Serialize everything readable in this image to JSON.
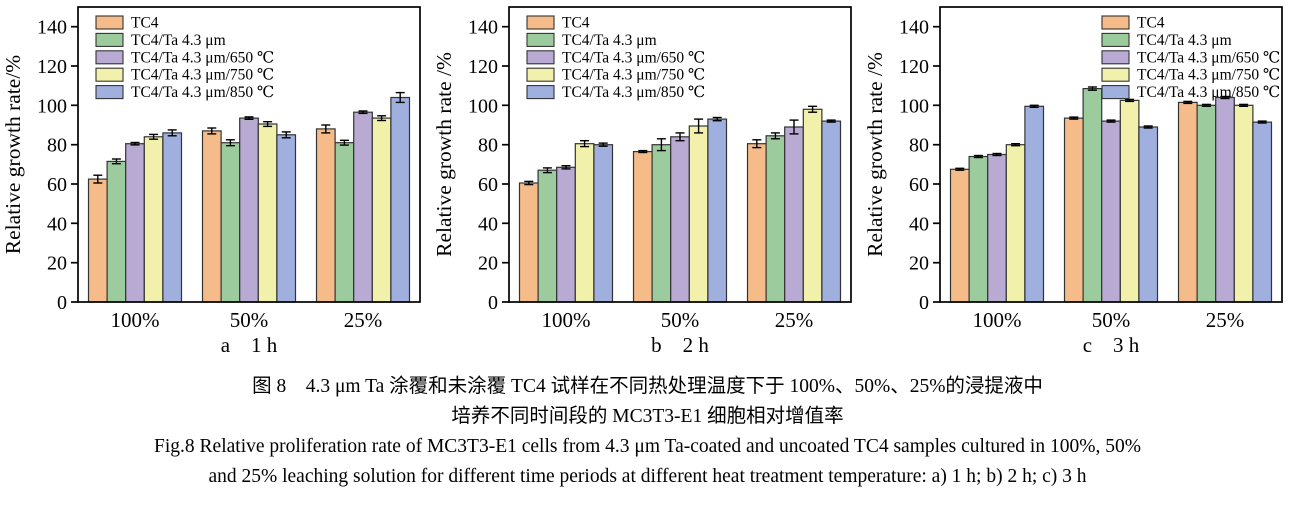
{
  "figure": {
    "caption_zh_line1": "图 8　4.3 μm Ta 涂覆和未涂覆 TC4 试样在不同热处理温度下于 100%、50%、25%的浸提液中",
    "caption_zh_line2": "培养不同时间段的 MC3T3-E1 细胞相对增值率",
    "caption_en_line1": "Fig.8 Relative proliferation rate of MC3T3-E1 cells from 4.3 μm Ta-coated and uncoated TC4 samples cultured in 100%, 50%",
    "caption_en_line2": "and 25% leaching solution for different time periods at different heat treatment temperature: a) 1 h; b) 2 h; c) 3 h"
  },
  "colors": {
    "bar_orange": "#F5BB88",
    "bar_green": "#9CCB9E",
    "bar_purple": "#B9AAD4",
    "bar_yellow": "#F1F1AC",
    "bar_blue": "#9FB0DF",
    "axis": "#000000"
  },
  "chart_data": [
    {
      "type": "bar",
      "panel": "a",
      "subtitle": "a　1 h",
      "ylabel": "Relative growth rate/%",
      "xlabel": "",
      "ylim": [
        0,
        150
      ],
      "yticks": [
        0,
        20,
        40,
        60,
        80,
        100,
        120,
        140
      ],
      "categories": [
        "100%",
        "50%",
        "25%"
      ],
      "legend_position": "top-left",
      "series": [
        {
          "name": "TC4",
          "color": "#F5BB88",
          "values": [
            62.5,
            87,
            88
          ],
          "errors": [
            2,
            1.5,
            2
          ]
        },
        {
          "name": "TC4/Ta 4.3 μm",
          "color": "#9CCB9E",
          "values": [
            71.5,
            81,
            81
          ],
          "errors": [
            1.2,
            1.5,
            1.2
          ]
        },
        {
          "name": "TC4/Ta 4.3 μm/650 ℃",
          "color": "#B9AAD4",
          "values": [
            80.5,
            93.5,
            96.5
          ],
          "errors": [
            0.6,
            0.6,
            0.6
          ]
        },
        {
          "name": "TC4/Ta 4.3 μm/750 ℃",
          "color": "#F1F1AC",
          "values": [
            84,
            90.5,
            93.5
          ],
          "errors": [
            1.2,
            1.2,
            1.2
          ]
        },
        {
          "name": "TC4/Ta 4.3 μm/850 ℃",
          "color": "#9FB0DF",
          "values": [
            86,
            85,
            104
          ],
          "errors": [
            1.5,
            1.5,
            2.5
          ]
        }
      ]
    },
    {
      "type": "bar",
      "panel": "b",
      "subtitle": "b　2 h",
      "ylabel": "Relative growth rate /%",
      "xlabel": "",
      "ylim": [
        0,
        150
      ],
      "yticks": [
        0,
        20,
        40,
        60,
        80,
        100,
        120,
        140
      ],
      "categories": [
        "100%",
        "50%",
        "25%"
      ],
      "legend_position": "top-left",
      "series": [
        {
          "name": "TC4",
          "color": "#F5BB88",
          "values": [
            60.5,
            76.5,
            80.5
          ],
          "errors": [
            0.8,
            0.5,
            2
          ]
        },
        {
          "name": "TC4/Ta 4.3 μm",
          "color": "#9CCB9E",
          "values": [
            67,
            80,
            84.5
          ],
          "errors": [
            1.2,
            3,
            1.5
          ]
        },
        {
          "name": "TC4/Ta 4.3 μm/650 ℃",
          "color": "#B9AAD4",
          "values": [
            68.5,
            84,
            89
          ],
          "errors": [
            0.8,
            2,
            3.5
          ]
        },
        {
          "name": "TC4/Ta 4.3 μm/750 ℃",
          "color": "#F1F1AC",
          "values": [
            80.5,
            89.5,
            98
          ],
          "errors": [
            1.5,
            3.5,
            1.5
          ]
        },
        {
          "name": "TC4/Ta 4.3 μm/850 ℃",
          "color": "#9FB0DF",
          "values": [
            80,
            93,
            92
          ],
          "errors": [
            0.8,
            0.8,
            0.5
          ]
        }
      ]
    },
    {
      "type": "bar",
      "panel": "c",
      "subtitle": "c　3 h",
      "ylabel": "Relative growth rate /%",
      "xlabel": "",
      "ylim": [
        0,
        150
      ],
      "yticks": [
        0,
        20,
        40,
        60,
        80,
        100,
        120,
        140
      ],
      "categories": [
        "100%",
        "50%",
        "25%"
      ],
      "legend_position": "top-right",
      "series": [
        {
          "name": "TC4",
          "color": "#F5BB88",
          "values": [
            67.5,
            93.5,
            101.5
          ],
          "errors": [
            0.5,
            0.5,
            0.5
          ]
        },
        {
          "name": "TC4/Ta 4.3 μm",
          "color": "#9CCB9E",
          "values": [
            74,
            108.5,
            100
          ],
          "errors": [
            0.5,
            0.8,
            0.5
          ]
        },
        {
          "name": "TC4/Ta 4.3 μm/650 ℃",
          "color": "#B9AAD4",
          "values": [
            75,
            92,
            104
          ],
          "errors": [
            0.5,
            0.5,
            0.5
          ]
        },
        {
          "name": "TC4/Ta 4.3 μm/750 ℃",
          "color": "#F1F1AC",
          "values": [
            80,
            102.5,
            100
          ],
          "errors": [
            0.5,
            0.5,
            0.5
          ]
        },
        {
          "name": "TC4/Ta 4.3 μm/850 ℃",
          "color": "#9FB0DF",
          "values": [
            99.5,
            89,
            91.5
          ],
          "errors": [
            0.5,
            0.5,
            0.5
          ]
        }
      ]
    }
  ]
}
